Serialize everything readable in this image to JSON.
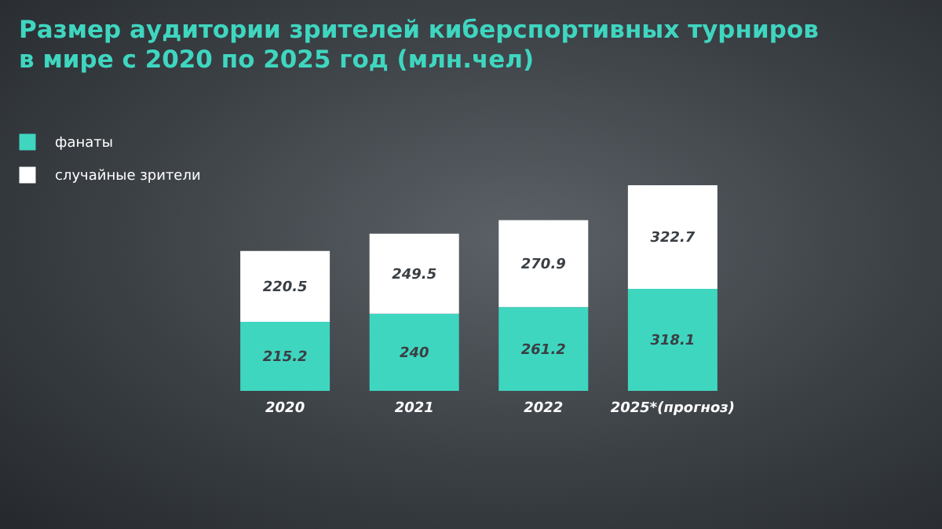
{
  "chart_data": {
    "type": "bar",
    "title": "Размер аудитории зрителей киберспортивных турниров\nв мире с 2020 по 2025 год (млн.чел)",
    "categories": [
      "2020",
      "2021",
      "2022",
      "2025*(прогноз)"
    ],
    "stacked": true,
    "data_labels": true,
    "legend": "top left",
    "series": [
      {
        "name": "фанаты",
        "color": "#3fd6c0",
        "values": [
          215.2,
          240,
          261.2,
          318.1
        ]
      },
      {
        "name": "случайные зрители",
        "color": "#ffffff",
        "values": [
          220.5,
          249.5,
          270.9,
          322.7
        ]
      }
    ]
  }
}
